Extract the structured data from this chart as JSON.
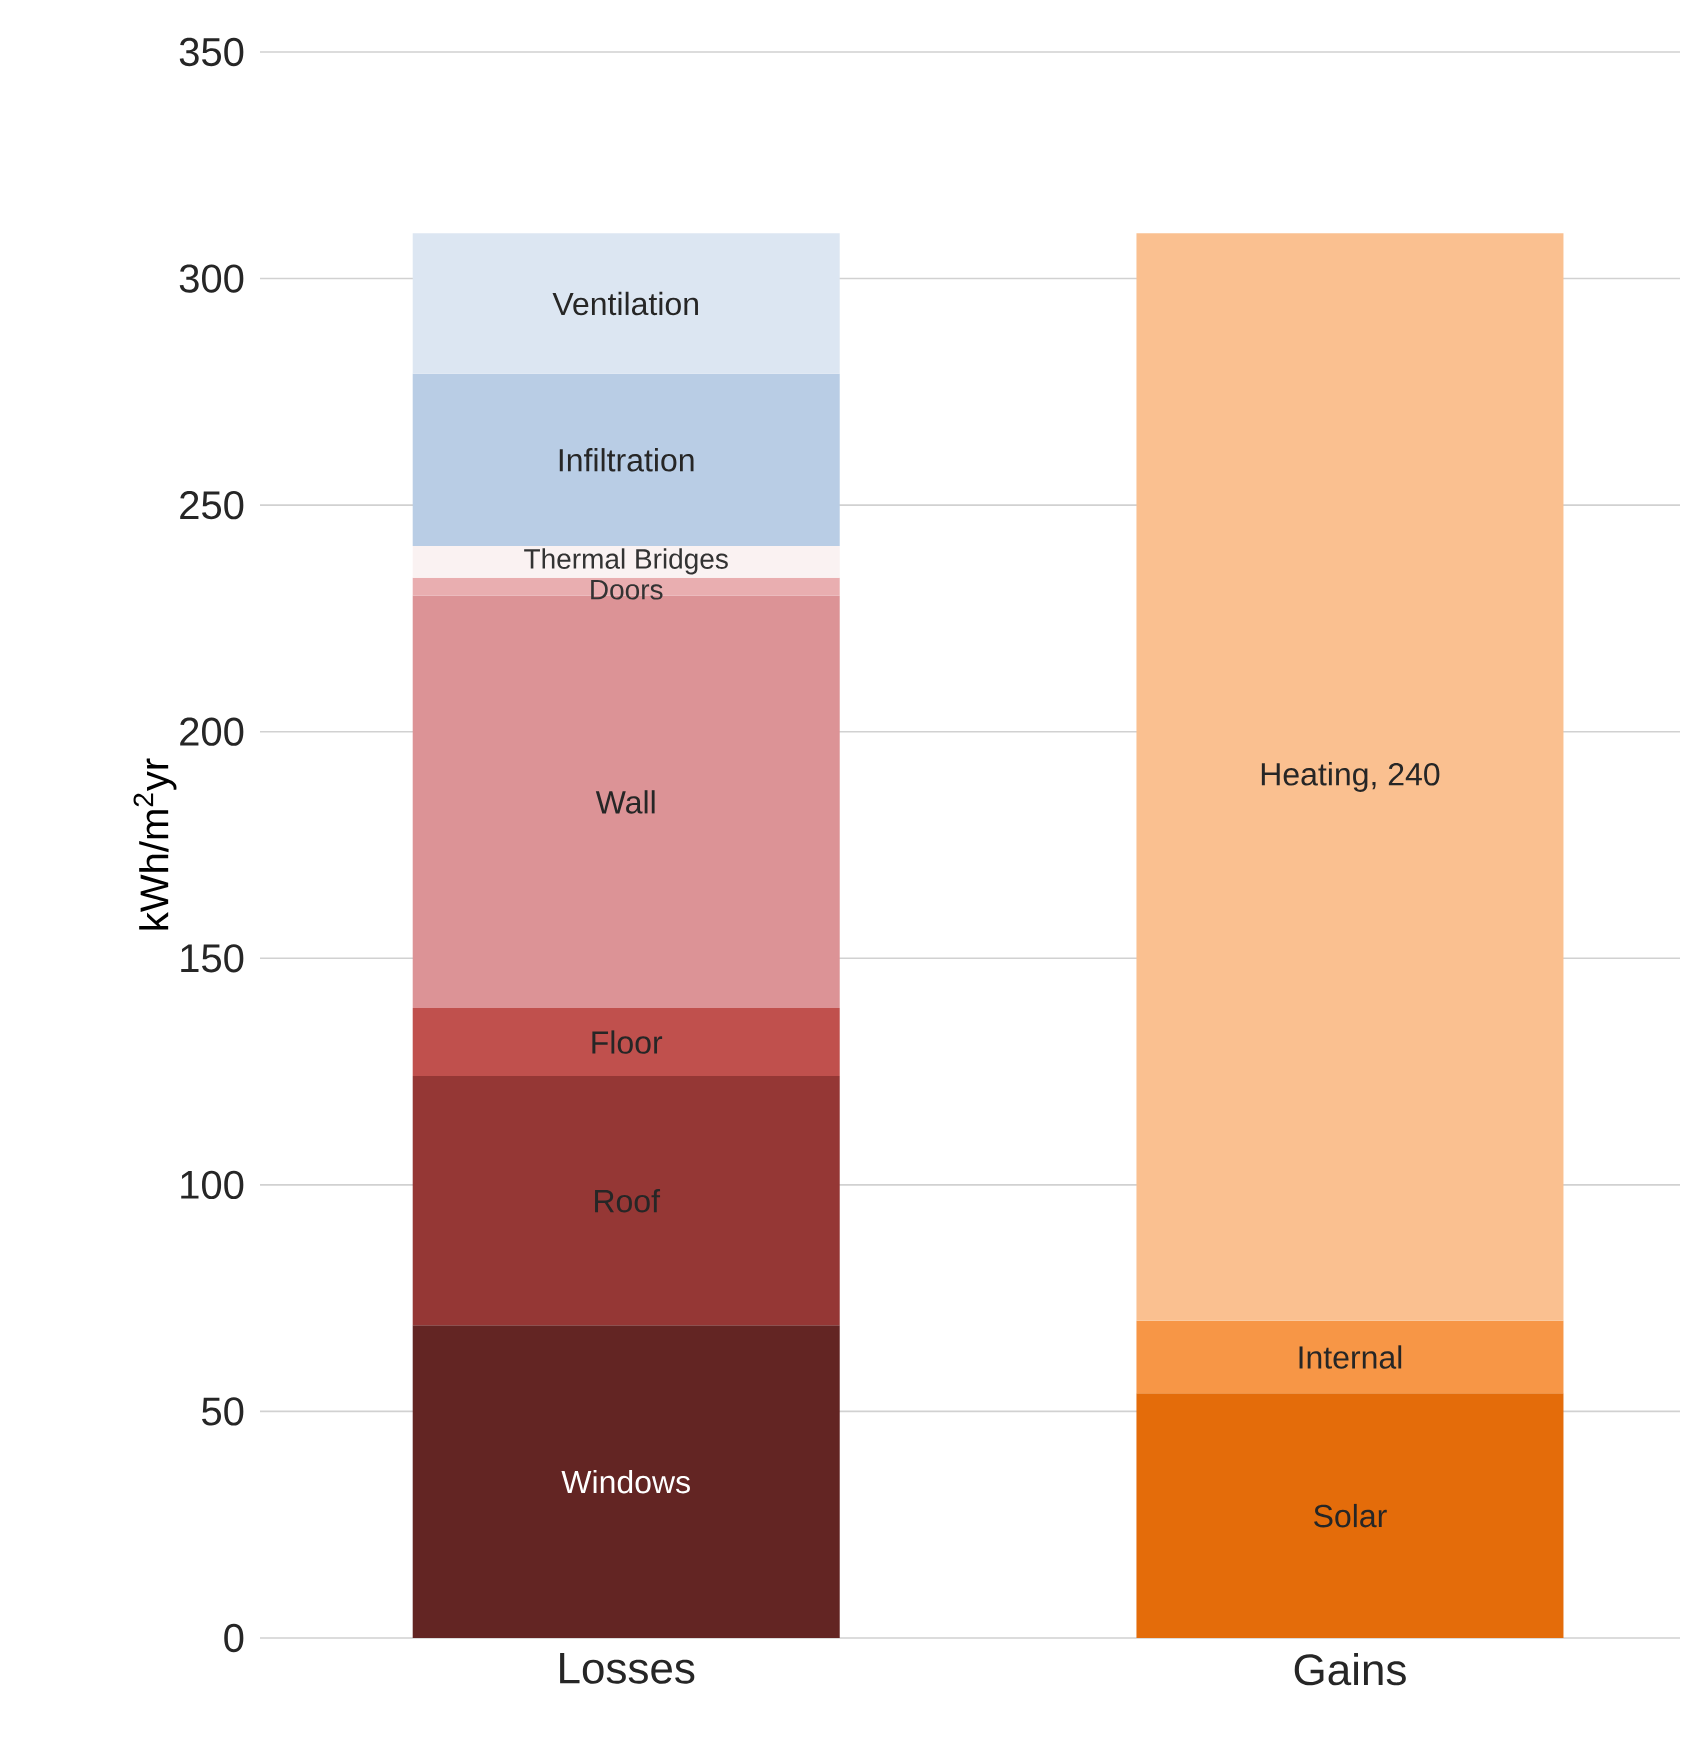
{
  "chart_data": {
    "type": "bar",
    "stacked": true,
    "ylabel": "kWh/m$^{2}$yr",
    "categories": [
      "Losses",
      "Gains"
    ],
    "series": [
      {
        "name": "Windows",
        "color": "#632523",
        "values": [
          69,
          null
        ]
      },
      {
        "name": "Roof",
        "color": "#953735",
        "values": [
          55,
          null
        ]
      },
      {
        "name": "Floor",
        "color": "#c0504d",
        "values": [
          15,
          null
        ]
      },
      {
        "name": "Wall",
        "color": "#dc9396",
        "values": [
          91,
          null
        ]
      },
      {
        "name": "Doors",
        "color": "#e9aeb0",
        "values": [
          4,
          null
        ]
      },
      {
        "name": "Thermal Bridges",
        "color": "#faf2f2",
        "values": [
          7,
          null
        ]
      },
      {
        "name": "Infiltration",
        "color": "#b9cde5",
        "values": [
          38,
          null
        ]
      },
      {
        "name": "Ventilation",
        "color": "#dce6f2",
        "values": [
          31,
          null
        ]
      },
      {
        "name": "Solar",
        "color": "#e46c0a",
        "values": [
          null,
          54
        ]
      },
      {
        "name": "Internal",
        "color": "#f79646",
        "values": [
          null,
          16
        ]
      },
      {
        "color": "#fac090",
        "values": [
          null,
          240
        ]
      }
    ],
    "annotations": [
      "Heating, 240"
    ],
    "ylim": [
      0,
      350
    ],
    "yticks": [
      0,
      50,
      100,
      150,
      200,
      250,
      300,
      350
    ],
    "grid": "y"
  }
}
